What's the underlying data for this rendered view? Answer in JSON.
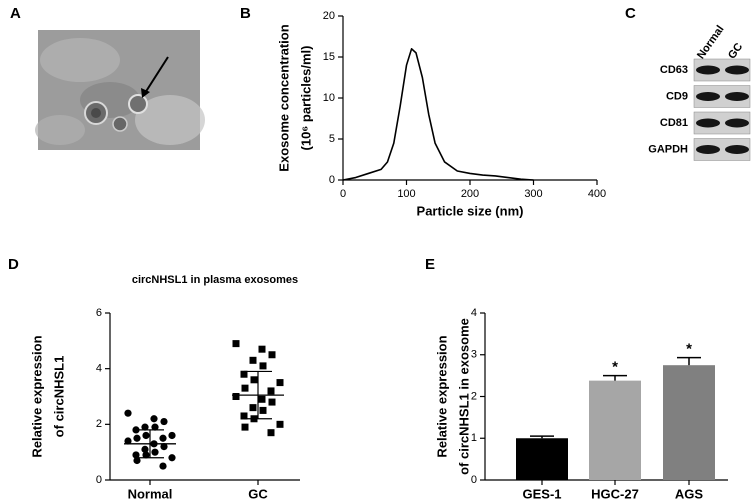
{
  "figure": {
    "panel_a": {
      "label": "A"
    },
    "panel_c": {
      "label": "C",
      "columns": [
        "Normal",
        "GC"
      ],
      "rows": [
        "CD63",
        "CD9",
        "CD81",
        "GAPDH"
      ]
    }
  },
  "chart_data": [
    {
      "type": "line",
      "panel_label": "B",
      "xlabel": "Particle size (nm)",
      "ylabel": [
        "Exosome concentration",
        "(10⁶ particles/ml)"
      ],
      "x": [
        0,
        20,
        40,
        60,
        70,
        80,
        90,
        100,
        108,
        115,
        125,
        135,
        145,
        160,
        180,
        200,
        220,
        240,
        260,
        280,
        300
      ],
      "y": [
        0,
        0.3,
        0.8,
        1.3,
        2.2,
        4.5,
        9,
        14,
        16,
        15.5,
        12.5,
        8,
        4.5,
        2.2,
        1.1,
        0.8,
        0.6,
        0.5,
        0.3,
        0.1,
        0
      ],
      "color": "#000000",
      "xlim": [
        0,
        400
      ],
      "xticks": [
        0,
        100,
        200,
        300,
        400
      ],
      "ylim": [
        0,
        20
      ],
      "yticks": [
        0,
        5,
        10,
        15,
        20
      ]
    },
    {
      "type": "dot",
      "panel_label": "D",
      "title": "circNHSL1 in plasma exosomes",
      "ylabel": [
        "Relative expression",
        "of circNHSL1"
      ],
      "categories": [
        "Normal",
        "GC"
      ],
      "groups": [
        {
          "marker": "circle",
          "mean": 1.3,
          "sd": 0.5,
          "values": [
            2.4,
            2.2,
            2.1,
            1.9,
            1.9,
            1.8,
            1.6,
            1.6,
            1.5,
            1.5,
            1.4,
            1.3,
            1.2,
            1.1,
            1.0,
            0.9,
            0.9,
            0.8,
            0.7,
            0.5
          ]
        },
        {
          "marker": "square",
          "mean": 3.05,
          "sd": 0.85,
          "values": [
            4.9,
            4.7,
            4.5,
            4.3,
            4.1,
            3.8,
            3.6,
            3.5,
            3.3,
            3.2,
            3.0,
            2.9,
            2.8,
            2.6,
            2.5,
            2.3,
            2.2,
            2.0,
            1.9,
            1.7
          ]
        }
      ],
      "color": "#000000",
      "ylim": [
        0,
        6
      ],
      "yticks": [
        0,
        2,
        4,
        6
      ]
    },
    {
      "type": "bar",
      "panel_label": "E",
      "ylabel": [
        "Relative expression",
        "of circNHSL1 in exosome"
      ],
      "categories": [
        "GES-1",
        "HGC-27",
        "AGS"
      ],
      "values": [
        1.0,
        2.38,
        2.75
      ],
      "errors": [
        0.05,
        0.12,
        0.18
      ],
      "annotations": [
        null,
        "*",
        "*"
      ],
      "colors": [
        "#000000",
        "#a6a6a6",
        "#808080"
      ],
      "ylim": [
        0,
        4
      ],
      "yticks": [
        0,
        1,
        2,
        3,
        4
      ]
    }
  ]
}
